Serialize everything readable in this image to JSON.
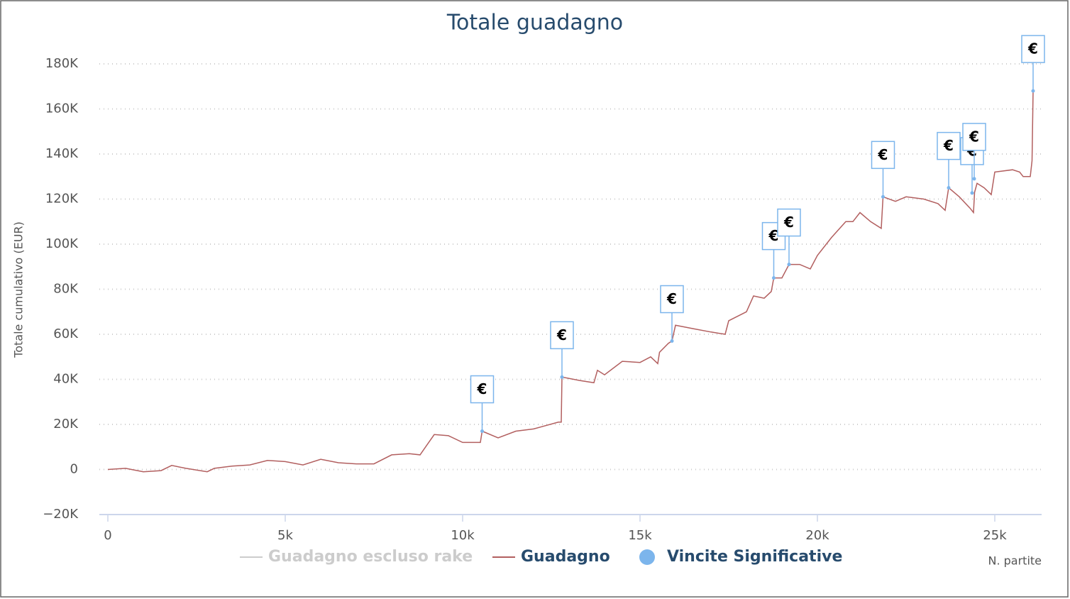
{
  "chart_data": {
    "type": "line",
    "title": "Totale guadagno",
    "y_label": "Totale cumulativo (EUR)",
    "x_label": "N. partite",
    "xlim": [
      -240,
      26320
    ],
    "ylim": [
      -20000,
      180000
    ],
    "xticks": [
      0,
      {
        "value": 5000,
        "label": "5k"
      },
      {
        "value": 10000,
        "label": "10k"
      },
      {
        "value": 15000,
        "label": "15k"
      },
      {
        "value": 20000,
        "label": "20k"
      },
      {
        "value": 25000,
        "label": "25k"
      }
    ],
    "yticks": [
      {
        "value": -20000,
        "label": "−20K"
      },
      0,
      {
        "value": 20000,
        "label": "20K"
      },
      {
        "value": 40000,
        "label": "40K"
      },
      {
        "value": 60000,
        "label": "60K"
      },
      {
        "value": 80000,
        "label": "80K"
      },
      {
        "value": 100000,
        "label": "100K"
      },
      {
        "value": 120000,
        "label": "120K"
      },
      {
        "value": 140000,
        "label": "140K"
      },
      {
        "value": 160000,
        "label": "160K"
      },
      {
        "value": 180000,
        "label": "180K"
      }
    ],
    "grid": true,
    "x": [
      0,
      500,
      1000,
      1500,
      1800,
      2200,
      2800,
      3000,
      3500,
      4000,
      4500,
      5000,
      5500,
      6000,
      6500,
      7000,
      7500,
      8000,
      8500,
      8800,
      9000,
      9200,
      9600,
      10000,
      10500,
      10550,
      11000,
      11500,
      12000,
      12700,
      12780,
      12800,
      13300,
      13700,
      13800,
      14000,
      14500,
      15000,
      15300,
      15500,
      15550,
      15800,
      15900,
      16000,
      16500,
      17000,
      17400,
      17500,
      18000,
      18200,
      18500,
      18700,
      18770,
      19000,
      19200,
      19500,
      19800,
      20000,
      20400,
      20800,
      21000,
      21200,
      21500,
      21800,
      21850,
      22200,
      22500,
      23000,
      23400,
      23600,
      23700,
      24000,
      24300,
      24400,
      24430,
      24500,
      24700,
      24900,
      25000,
      25500,
      25700,
      25800,
      26000,
      26050,
      26080
    ],
    "series": [
      {
        "name": "Guadagno escluso rake",
        "color": "#cccccc",
        "visible": false
      },
      {
        "name": "Guadagno",
        "color": "#b25f5f",
        "values": [
          0,
          500,
          -1000,
          -500,
          1800,
          500,
          -1000,
          500,
          1500,
          2000,
          4000,
          3500,
          2000,
          4500,
          3000,
          2500,
          2500,
          6500,
          7000,
          6500,
          11000,
          15500,
          15000,
          12000,
          12000,
          17000,
          14000,
          17000,
          18000,
          21000,
          21000,
          41000,
          39500,
          38500,
          44000,
          42000,
          48000,
          47500,
          50000,
          47000,
          52000,
          56000,
          57000,
          64000,
          62500,
          61000,
          60000,
          66000,
          70000,
          77000,
          76000,
          79000,
          85000,
          85000,
          91000,
          91000,
          89000,
          95000,
          103000,
          110000,
          110000,
          114000,
          110000,
          107000,
          121000,
          119000,
          121000,
          120000,
          118000,
          115000,
          125000,
          121000,
          116000,
          114000,
          123000,
          127000,
          125000,
          122000,
          132000,
          133000,
          132000,
          130000,
          130000,
          137000,
          168000
        ]
      },
      {
        "name": "Vincite Significative",
        "type": "flags",
        "color": "#7cb5ec",
        "text": "€",
        "x": [
          10550,
          12800,
          15900,
          18770,
          19200,
          21850,
          23700,
          24360,
          24420,
          26080
        ],
        "values": [
          17000,
          41000,
          57000,
          85000,
          91000,
          121000,
          125000,
          122700,
          129000,
          168000
        ]
      }
    ]
  }
}
